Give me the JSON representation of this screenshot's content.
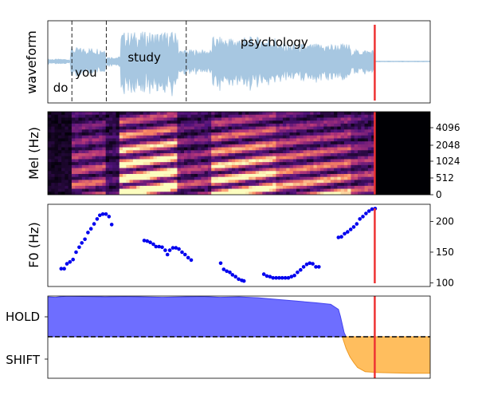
{
  "chart_data": [
    {
      "type": "line",
      "panel": "waveform",
      "ylabel": "waveform",
      "xlim": [
        0,
        1
      ],
      "color": "#a7c7e1",
      "words": [
        {
          "text": "do",
          "x": 0.014
        },
        {
          "text": "you",
          "x": 0.071
        },
        {
          "text": "study",
          "x": 0.209
        },
        {
          "text": "psychology",
          "x": 0.504
        }
      ],
      "word_boundaries": [
        0.063,
        0.153,
        0.362
      ],
      "marker_x": 0.855,
      "marker_color": "#ee3333"
    },
    {
      "type": "heatmap",
      "panel": "mel_spectrogram",
      "ylabel": "Mel (Hz)",
      "yticks": [
        "0",
        "512",
        "1024",
        "2048",
        "4096"
      ],
      "speech_end_x": 0.855,
      "marker_x": 0.855
    },
    {
      "type": "scatter",
      "panel": "f0",
      "ylabel": "F0 (Hz)",
      "ylim": [
        94,
        228
      ],
      "yticks": [
        100,
        150,
        200
      ],
      "color": "#0000ee",
      "points": [
        [
          0.035,
          123
        ],
        [
          0.043,
          123
        ],
        [
          0.05,
          131
        ],
        [
          0.058,
          134
        ],
        [
          0.066,
          138
        ],
        [
          0.074,
          150
        ],
        [
          0.082,
          158
        ],
        [
          0.089,
          165
        ],
        [
          0.097,
          171
        ],
        [
          0.105,
          182
        ],
        [
          0.113,
          188
        ],
        [
          0.121,
          196
        ],
        [
          0.129,
          204
        ],
        [
          0.136,
          210
        ],
        [
          0.144,
          212
        ],
        [
          0.152,
          212
        ],
        [
          0.16,
          208
        ],
        [
          0.167,
          195
        ],
        [
          0.252,
          169
        ],
        [
          0.26,
          168
        ],
        [
          0.268,
          166
        ],
        [
          0.276,
          163
        ],
        [
          0.283,
          159
        ],
        [
          0.291,
          159
        ],
        [
          0.299,
          158
        ],
        [
          0.307,
          153
        ],
        [
          0.313,
          146
        ],
        [
          0.319,
          153
        ],
        [
          0.327,
          157
        ],
        [
          0.335,
          157
        ],
        [
          0.343,
          155
        ],
        [
          0.351,
          150
        ],
        [
          0.359,
          146
        ],
        [
          0.367,
          141
        ],
        [
          0.375,
          137
        ],
        [
          0.452,
          132
        ],
        [
          0.46,
          122
        ],
        [
          0.468,
          119
        ],
        [
          0.476,
          117
        ],
        [
          0.483,
          113
        ],
        [
          0.491,
          110
        ],
        [
          0.499,
          106
        ],
        [
          0.507,
          104
        ],
        [
          0.513,
          103
        ],
        [
          0.565,
          114
        ],
        [
          0.573,
          111
        ],
        [
          0.581,
          110
        ],
        [
          0.589,
          108
        ],
        [
          0.597,
          108
        ],
        [
          0.605,
          108
        ],
        [
          0.613,
          108
        ],
        [
          0.621,
          108
        ],
        [
          0.629,
          108
        ],
        [
          0.637,
          110
        ],
        [
          0.645,
          112
        ],
        [
          0.653,
          117
        ],
        [
          0.661,
          121
        ],
        [
          0.669,
          126
        ],
        [
          0.677,
          130
        ],
        [
          0.685,
          132
        ],
        [
          0.693,
          131
        ],
        [
          0.701,
          126
        ],
        [
          0.709,
          126
        ],
        [
          0.76,
          174
        ],
        [
          0.768,
          175
        ],
        [
          0.776,
          180
        ],
        [
          0.784,
          183
        ],
        [
          0.792,
          187
        ],
        [
          0.8,
          191
        ],
        [
          0.808,
          196
        ],
        [
          0.816,
          204
        ],
        [
          0.824,
          208
        ],
        [
          0.832,
          213
        ],
        [
          0.84,
          217
        ],
        [
          0.848,
          220
        ],
        [
          0.856,
          221
        ]
      ],
      "marker_x": 0.855
    },
    {
      "type": "area",
      "panel": "turn_taking",
      "ylabels": [
        "HOLD",
        "SHIFT"
      ],
      "baseline_style": "dashed",
      "series": [
        {
          "color": "#6666ff",
          "x": [
            0,
            0.02,
            0.05,
            0.1,
            0.15,
            0.2,
            0.25,
            0.3,
            0.35,
            0.4,
            0.45,
            0.5,
            0.55,
            0.6,
            0.65,
            0.7,
            0.72,
            0.74,
            0.76,
            0.765,
            0.77,
            0.775,
            0.78
          ],
          "values": [
            0.96,
            0.95,
            0.98,
            0.97,
            0.96,
            0.97,
            0.96,
            0.95,
            0.96,
            0.97,
            0.95,
            0.96,
            0.94,
            0.9,
            0.86,
            0.82,
            0.8,
            0.78,
            0.66,
            0.5,
            0.3,
            0.1,
            0.0
          ]
        },
        {
          "color": "#ffbb55",
          "x": [
            0.77,
            0.78,
            0.79,
            0.8,
            0.81,
            0.83,
            0.86,
            0.9,
            0.95,
            1.0
          ],
          "values": [
            0.0,
            -0.28,
            -0.48,
            -0.62,
            -0.74,
            -0.84,
            -0.86,
            -0.87,
            -0.88,
            -0.88
          ]
        }
      ],
      "marker_x": 0.855
    }
  ]
}
